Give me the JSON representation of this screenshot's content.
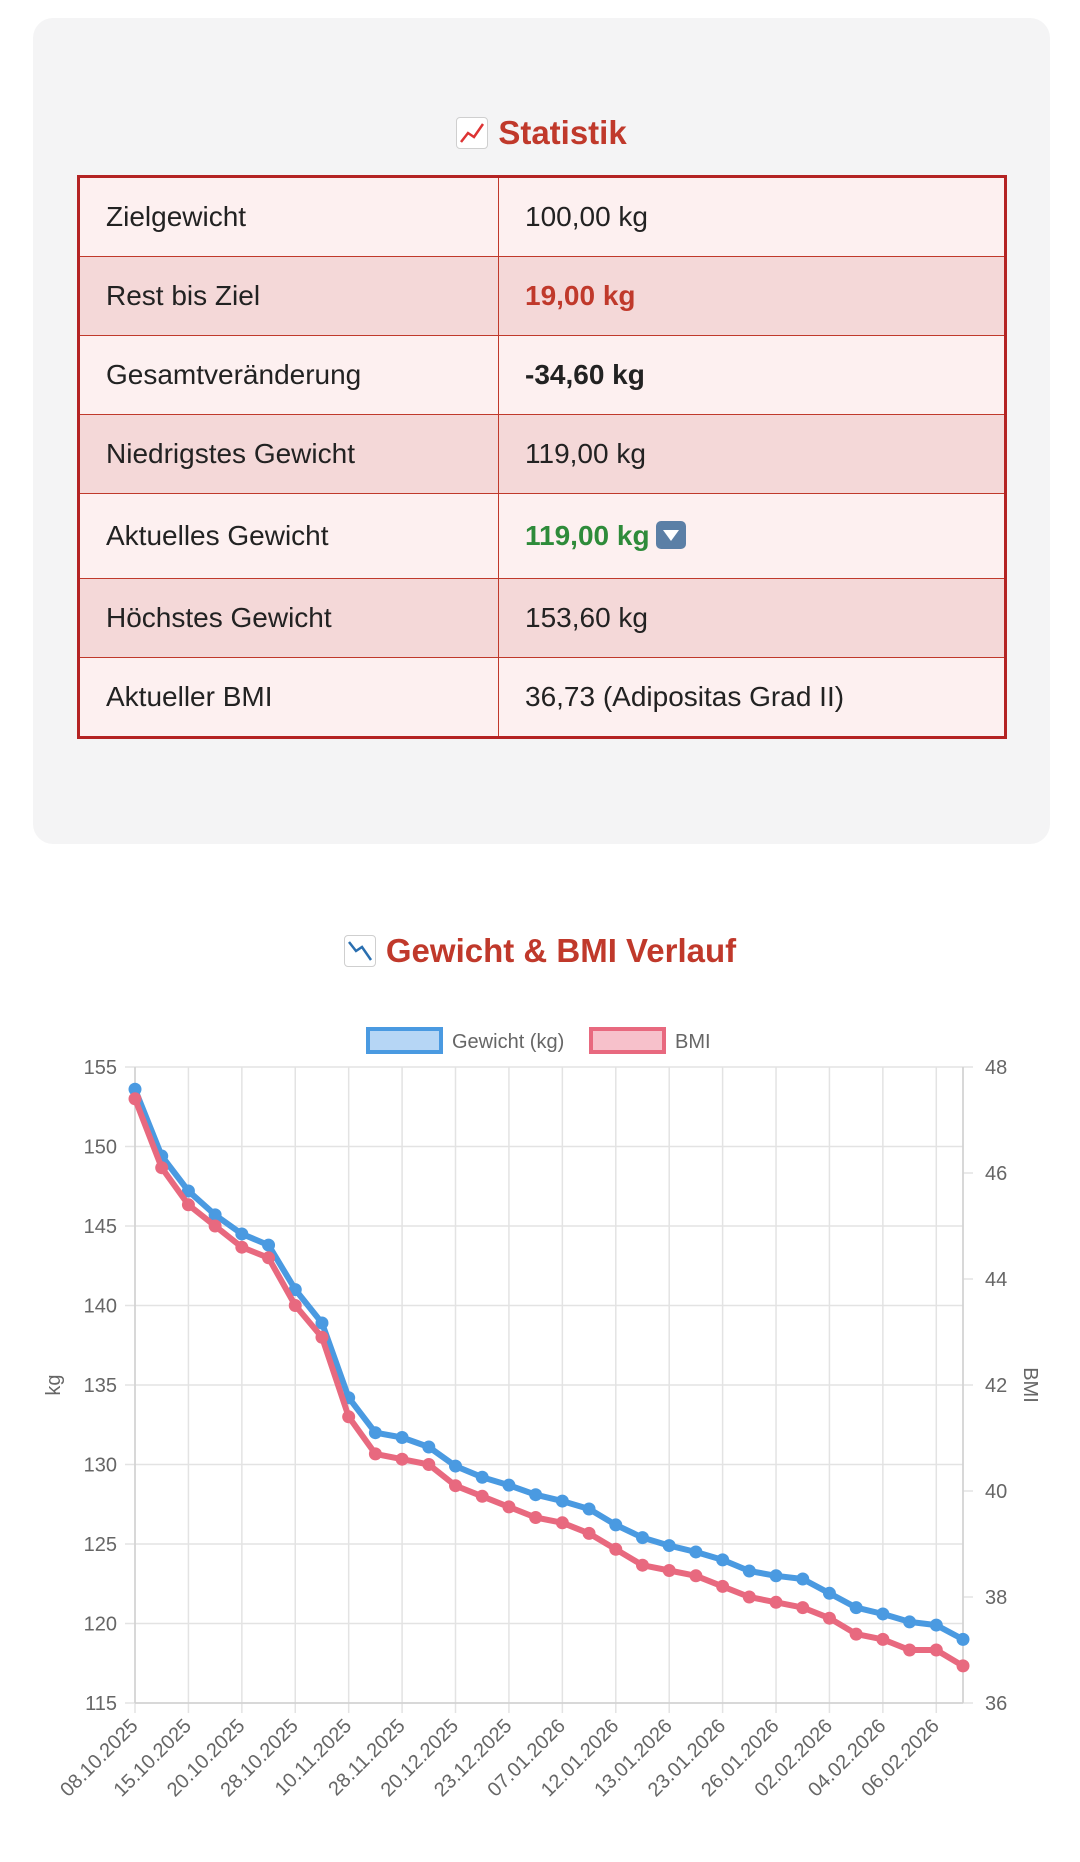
{
  "stats": {
    "title": "Statistik",
    "title_icon": "chart-increasing-icon",
    "rows": [
      {
        "label": "Zielgewicht",
        "value": "100,00 kg"
      },
      {
        "label": "Rest bis Ziel",
        "value": "19,00 kg"
      },
      {
        "label": "Gesamtveränderung",
        "value": "-34,60 kg"
      },
      {
        "label": "Niedrigstes Gewicht",
        "value": "119,00 kg"
      },
      {
        "label": "Aktuelles Gewicht",
        "value": "119,00 kg",
        "icon": "down-arrow-icon"
      },
      {
        "label": "Höchstes Gewicht",
        "value": "153,60 kg"
      },
      {
        "label": "Aktueller BMI",
        "value": "36,73 (Adipositas Grad II)"
      }
    ]
  },
  "chart_section": {
    "title": "Gewicht & BMI Verlauf",
    "title_icon": "chart-decreasing-icon"
  },
  "chart_data": {
    "type": "line",
    "x": [
      "08.10.2025",
      "",
      "15.10.2025",
      "",
      "20.10.2025",
      "",
      "28.10.2025",
      "",
      "10.11.2025",
      "",
      "28.11.2025",
      "",
      "20.12.2025",
      "",
      "23.12.2025",
      "",
      "07.01.2026",
      "",
      "12.01.2026",
      "",
      "13.01.2026",
      "",
      "23.01.2026",
      "",
      "26.01.2026",
      "",
      "02.02.2026",
      "",
      "04.02.2026",
      "",
      "06.02.2026",
      ""
    ],
    "series": [
      {
        "name": "Gewicht (kg)",
        "axis": "left",
        "color": "#4a9ae1",
        "values": [
          153.6,
          149.4,
          147.2,
          145.7,
          144.5,
          143.8,
          141.0,
          138.9,
          134.2,
          132.0,
          131.7,
          131.1,
          129.9,
          129.2,
          128.7,
          128.1,
          127.7,
          127.2,
          126.2,
          125.4,
          124.9,
          124.5,
          124.0,
          123.3,
          123.0,
          122.8,
          121.9,
          121.0,
          120.6,
          120.1,
          119.9,
          119.0
        ]
      },
      {
        "name": "BMI",
        "axis": "right",
        "color": "#e8697f",
        "values": [
          47.4,
          46.1,
          45.4,
          45.0,
          44.6,
          44.4,
          43.5,
          42.9,
          41.4,
          40.7,
          40.6,
          40.5,
          40.1,
          39.9,
          39.7,
          39.5,
          39.4,
          39.2,
          38.9,
          38.6,
          38.5,
          38.4,
          38.2,
          38.0,
          37.9,
          37.8,
          37.6,
          37.3,
          37.2,
          37.0,
          37.0,
          36.7
        ]
      }
    ],
    "ylabel": "kg",
    "y2label": "BMI",
    "ylim": [
      115,
      155
    ],
    "y_ticks": [
      155,
      150,
      145,
      140,
      135,
      130,
      125,
      120,
      115
    ],
    "y2lim": [
      36,
      48
    ],
    "y2_ticks": [
      48,
      46,
      44,
      42,
      40,
      38,
      36
    ],
    "grid": true,
    "legend_position": "top"
  },
  "colors": {
    "accent": "#c0392b",
    "positive": "#2e8b3a",
    "weight_line": "#4a9ae1",
    "bmi_line": "#e8697f"
  }
}
